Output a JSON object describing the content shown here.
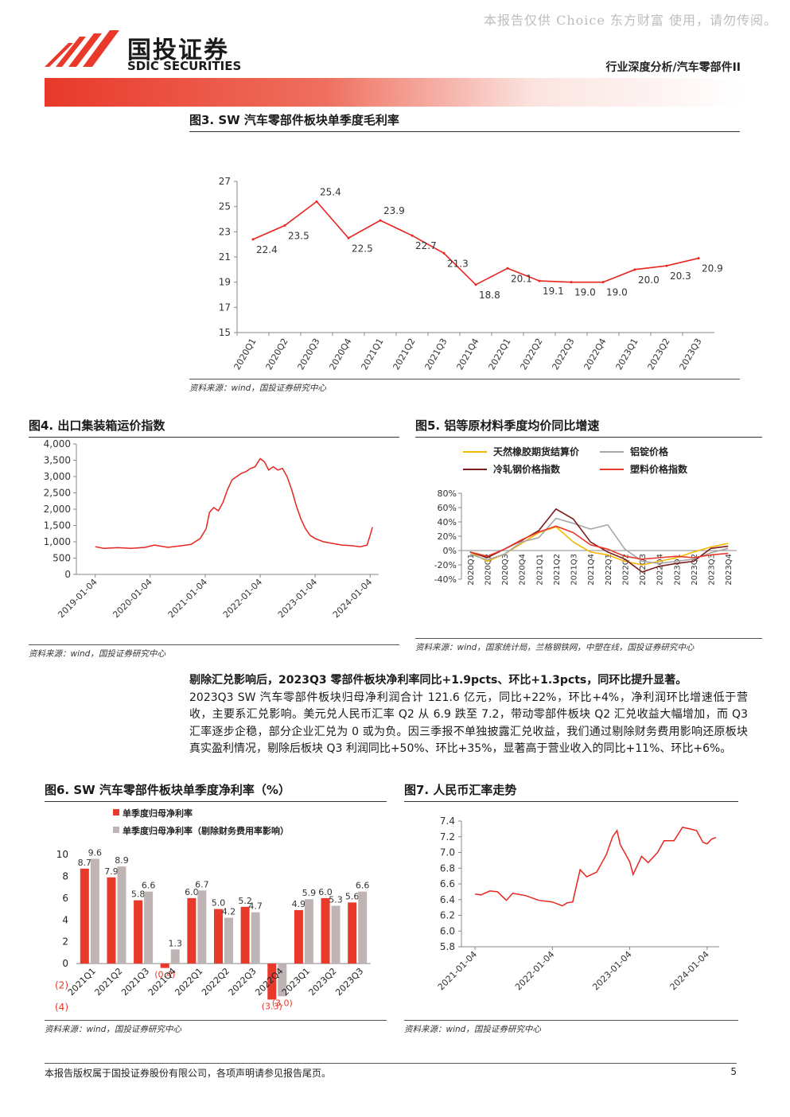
{
  "watermark": "本报告仅供 Choice 东方财富 使用，请勿传阅。",
  "header": {
    "logo_cn": "国投证券",
    "logo_en": "SDIC SECURITIES",
    "tag": "行业深度分析/汽车零部件II",
    "colors": {
      "brand_red": "#e8392a"
    }
  },
  "fig3": {
    "title": "图3. SW 汽车零部件板块单季度毛利率",
    "source": "资料来源：wind，国投证券研究中心"
  },
  "fig4": {
    "title": "图4. 出口集装箱运价指数",
    "source": "资料来源：wind，国投证券研究中心"
  },
  "fig5": {
    "title": "图5. 铝等原材料季度均价同比增速",
    "source": "资料来源：wind，国家统计局，兰格钢铁网，中塑在线，国投证券研究中心"
  },
  "fig6": {
    "title": "图6. SW 汽车零部件板块单季度净利率（%）",
    "source": "资料来源：wind，国投证券研究中心"
  },
  "fig7": {
    "title": "图7. 人民币汇率走势",
    "source": "资料来源：wind，国投证券研究中心"
  },
  "paragraph": {
    "bold": "剔除汇兑影响后，2023Q3 零部件板块净利率同比+1.9pcts、环比+1.3pcts，同环比提升显著。",
    "text": "2023Q3 SW 汽车零部件板块归母净利润合计 121.6 亿元，同比+22%，环比+4%，净利润环比增速低于营收，主要系汇兑影响。美元兑人民币汇率 Q2 从 6.9 跌至 7.2，带动零部件板块 Q2 汇兑收益大幅增加，而 Q3 汇率逐步企稳，部分企业汇兑为 0 或为负。因三季报不单独披露汇兑收益，我们通过剔除财务费用影响还原板块真实盈利情况，剔除后板块 Q3 利润同比+50%、环比+35%，显著高于营业收入的同比+11%、环比+6%。"
  },
  "footer": {
    "disclaimer": "本报告版权属于国投证券股份有限公司，各项声明请参见报告尾页。",
    "page": "5"
  },
  "chart_data": [
    {
      "id": "fig3",
      "type": "line",
      "categories": [
        "2020Q1",
        "2020Q2",
        "2020Q3",
        "2020Q4",
        "2021Q1",
        "2021Q2",
        "2021Q3",
        "2021Q4",
        "2022Q1",
        "2022Q2",
        "2022Q3",
        "2022Q4",
        "2023Q1",
        "2023Q2",
        "2023Q3"
      ],
      "series": [
        {
          "values": [
            22.4,
            23.5,
            25.4,
            22.5,
            23.9,
            22.7,
            21.3,
            18.8,
            20.1,
            19.1,
            19.0,
            19.0,
            20.0,
            20.3,
            20.9
          ],
          "color": "#e8251f"
        }
      ],
      "data_labels": [
        "22.4",
        "23.5",
        "25.4",
        "22.5",
        "23.9",
        "22.7",
        "21.3",
        "18.8",
        "20.1",
        "19.1",
        "19.0",
        "19.0",
        "20.0",
        "20.3",
        "20.9"
      ],
      "yticks": [
        "15",
        "17",
        "19",
        "21",
        "23",
        "25",
        "27"
      ],
      "ylim": [
        15,
        27
      ]
    },
    {
      "id": "fig4",
      "type": "line",
      "xticks": [
        "2019-01-04",
        "2020-01-04",
        "2021-01-04",
        "2022-01-04",
        "2023-01-04",
        "2024-01-04"
      ],
      "yticks": [
        "0",
        "500",
        "1,000",
        "1,500",
        "2,000",
        "2,500",
        "3,000",
        "3,500",
        "4,000"
      ],
      "ylim": [
        0,
        4000
      ],
      "series": [
        {
          "color": "#e8251f",
          "points": [
            [
              "2019-01-04",
              850
            ],
            [
              "2019-03-01",
              800
            ],
            [
              "2019-06-01",
              820
            ],
            [
              "2019-09-01",
              800
            ],
            [
              "2019-12-01",
              830
            ],
            [
              "2020-02-01",
              900
            ],
            [
              "2020-05-01",
              830
            ],
            [
              "2020-08-01",
              880
            ],
            [
              "2020-10-01",
              920
            ],
            [
              "2020-12-01",
              1100
            ],
            [
              "2021-01-10",
              1400
            ],
            [
              "2021-02-01",
              1900
            ],
            [
              "2021-03-01",
              2050
            ],
            [
              "2021-04-01",
              1950
            ],
            [
              "2021-05-01",
              2200
            ],
            [
              "2021-06-01",
              2600
            ],
            [
              "2021-07-01",
              2900
            ],
            [
              "2021-08-01",
              3000
            ],
            [
              "2021-09-01",
              3100
            ],
            [
              "2021-10-01",
              3150
            ],
            [
              "2021-11-01",
              3250
            ],
            [
              "2021-12-01",
              3300
            ],
            [
              "2022-01-04",
              3550
            ],
            [
              "2022-02-01",
              3450
            ],
            [
              "2022-03-01",
              3200
            ],
            [
              "2022-04-01",
              3300
            ],
            [
              "2022-05-01",
              3200
            ],
            [
              "2022-06-01",
              3250
            ],
            [
              "2022-07-01",
              3000
            ],
            [
              "2022-08-01",
              2600
            ],
            [
              "2022-09-01",
              2100
            ],
            [
              "2022-10-01",
              1700
            ],
            [
              "2022-11-01",
              1400
            ],
            [
              "2022-12-01",
              1200
            ],
            [
              "2023-01-04",
              1100
            ],
            [
              "2023-03-01",
              1000
            ],
            [
              "2023-05-01",
              950
            ],
            [
              "2023-07-01",
              900
            ],
            [
              "2023-09-01",
              880
            ],
            [
              "2023-11-01",
              850
            ],
            [
              "2023-12-15",
              900
            ],
            [
              "2024-01-04",
              1200
            ],
            [
              "2024-01-20",
              1450
            ]
          ]
        }
      ]
    },
    {
      "id": "fig5",
      "type": "line",
      "categories": [
        "2020Q1",
        "2020Q2",
        "2020Q3",
        "2020Q4",
        "2021Q1",
        "2021Q2",
        "2021Q3",
        "2021Q4",
        "2022Q1",
        "2022Q2",
        "2022Q3",
        "2022Q4",
        "2023Q1",
        "2023Q2",
        "2023Q3",
        "2023Q4"
      ],
      "yticks": [
        "-40%",
        "-20%",
        "0%",
        "20%",
        "40%",
        "60%",
        "80%"
      ],
      "ylim": [
        -40,
        80
      ],
      "series": [
        {
          "name": "天然橡胶期货结算价",
          "color": "#f5b800",
          "values": [
            -2,
            -15,
            -5,
            10,
            25,
            33,
            12,
            -2,
            -6,
            -15,
            -20,
            -15,
            -10,
            -2,
            5,
            10
          ]
        },
        {
          "name": "铝锭价格",
          "color": "#a6a6a6",
          "values": [
            -5,
            -13,
            -5,
            12,
            18,
            45,
            38,
            30,
            36,
            2,
            -15,
            -18,
            -15,
            -12,
            -3,
            3
          ]
        },
        {
          "name": "冷轧钢价格指数",
          "color": "#7b1d1d",
          "values": [
            -2,
            -10,
            2,
            14,
            28,
            58,
            44,
            12,
            -2,
            -12,
            -30,
            -22,
            -18,
            -15,
            3,
            6
          ]
        },
        {
          "name": "塑料价格指数",
          "color": "#e8392a",
          "values": [
            -2,
            -8,
            2,
            15,
            26,
            34,
            25,
            8,
            2,
            -8,
            -12,
            -10,
            -8,
            -10,
            -6,
            -4
          ]
        }
      ]
    },
    {
      "id": "fig6",
      "type": "bar",
      "categories": [
        "2021Q1",
        "2021Q2",
        "2021Q3",
        "2021Q4",
        "2022Q1",
        "2022Q2",
        "2022Q3",
        "2022Q4",
        "2023Q1",
        "2023Q2",
        "2023Q3"
      ],
      "yticks": [
        "(4)",
        "(2)",
        "0",
        "2",
        "4",
        "6",
        "8",
        "10"
      ],
      "ylim": [
        -4,
        10
      ],
      "series": [
        {
          "name": "单季度归母净利率",
          "color": "#e8392a",
          "values": [
            8.7,
            7.9,
            5.8,
            -0.4,
            6.0,
            5.0,
            5.2,
            -3.3,
            4.9,
            6.0,
            5.6
          ],
          "labels": [
            "8.7",
            "7.9",
            "5.8",
            "(0.4)",
            "6.0",
            "5.0",
            "5.2",
            "(3.3)",
            "4.9",
            "6.0",
            "5.6"
          ]
        },
        {
          "name": "单季度归母净利率（剔除财务费用率影响）",
          "color": "#bfb4b4",
          "values": [
            9.6,
            8.9,
            6.6,
            1.3,
            6.7,
            4.2,
            4.7,
            -3.0,
            5.9,
            5.3,
            6.6
          ],
          "labels": [
            "9.6",
            "8.9",
            "6.6",
            "1.3",
            "6.7",
            "4.2",
            "4.7",
            "(3.0)",
            "5.9",
            "5.3",
            "6.6"
          ]
        }
      ]
    },
    {
      "id": "fig7",
      "type": "line",
      "xticks": [
        "2021-01-04",
        "2022-01-04",
        "2023-01-04",
        "2024-01-04"
      ],
      "yticks": [
        "5.8",
        "6.0",
        "6.2",
        "6.4",
        "6.6",
        "6.8",
        "7.0",
        "7.2",
        "7.4"
      ],
      "ylim": [
        5.8,
        7.4
      ],
      "series": [
        {
          "color": "#e8251f",
          "points": [
            [
              "2021-01-04",
              6.47
            ],
            [
              "2021-02-01",
              6.46
            ],
            [
              "2021-03-15",
              6.51
            ],
            [
              "2021-04-20",
              6.5
            ],
            [
              "2021-06-01",
              6.39
            ],
            [
              "2021-07-01",
              6.48
            ],
            [
              "2021-09-01",
              6.45
            ],
            [
              "2021-11-01",
              6.39
            ],
            [
              "2022-01-04",
              6.37
            ],
            [
              "2022-02-20",
              6.32
            ],
            [
              "2022-03-15",
              6.36
            ],
            [
              "2022-04-10",
              6.37
            ],
            [
              "2022-04-25",
              6.55
            ],
            [
              "2022-05-15",
              6.78
            ],
            [
              "2022-06-15",
              6.69
            ],
            [
              "2022-08-01",
              6.75
            ],
            [
              "2022-09-15",
              6.97
            ],
            [
              "2022-10-15",
              7.2
            ],
            [
              "2022-11-05",
              7.28
            ],
            [
              "2022-11-20",
              7.1
            ],
            [
              "2022-12-15",
              6.98
            ],
            [
              "2023-01-04",
              6.88
            ],
            [
              "2023-01-20",
              6.72
            ],
            [
              "2023-03-01",
              6.95
            ],
            [
              "2023-04-01",
              6.87
            ],
            [
              "2023-05-15",
              7.0
            ],
            [
              "2023-06-15",
              7.15
            ],
            [
              "2023-08-01",
              7.15
            ],
            [
              "2023-09-10",
              7.32
            ],
            [
              "2023-10-15",
              7.3
            ],
            [
              "2023-11-15",
              7.28
            ],
            [
              "2023-12-15",
              7.13
            ],
            [
              "2024-01-04",
              7.11
            ],
            [
              "2024-01-25",
              7.17
            ],
            [
              "2024-02-15",
              7.19
            ]
          ]
        }
      ]
    }
  ]
}
